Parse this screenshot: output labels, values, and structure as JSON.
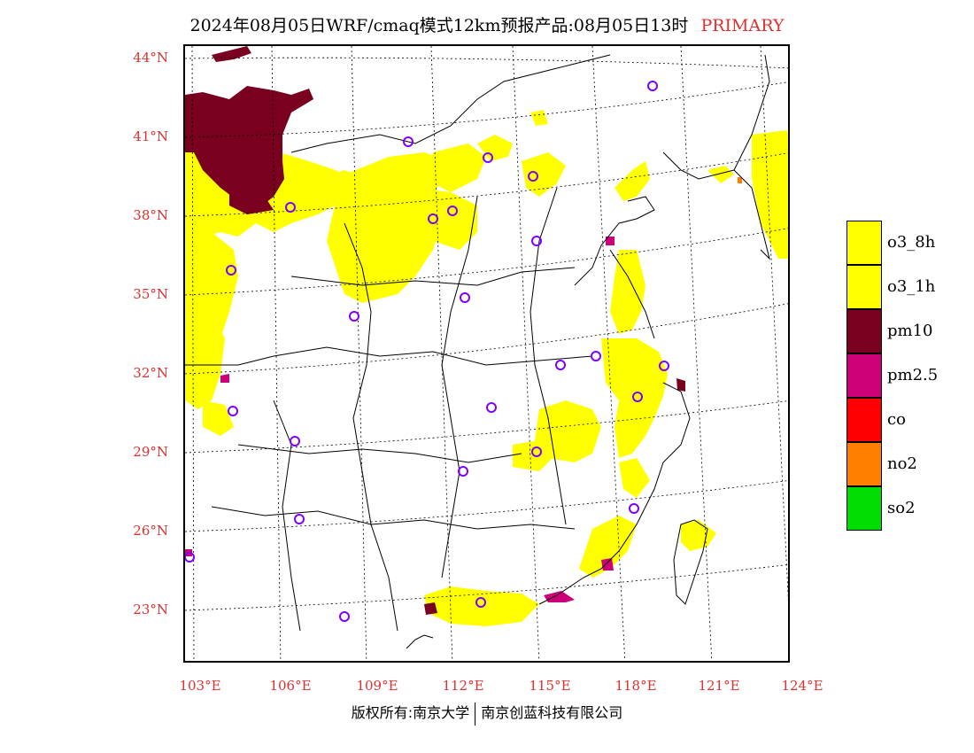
{
  "title": {
    "main": "2024年08月05日WRF/cmaq模式12km预报产品:08月05日13时",
    "tag": "PRIMARY"
  },
  "axes": {
    "lat_labels": [
      "44°N",
      "41°N",
      "38°N",
      "35°N",
      "32°N",
      "29°N",
      "26°N",
      "23°N"
    ],
    "lon_labels": [
      "103°E",
      "106°E",
      "109°E",
      "112°E",
      "115°E",
      "118°E",
      "121°E",
      "124°E"
    ]
  },
  "legend": [
    {
      "label": "o3_8h",
      "color": "#ffff00"
    },
    {
      "label": "o3_1h",
      "color": "#ffff00"
    },
    {
      "label": "pm10",
      "color": "#7a0020"
    },
    {
      "label": "pm2.5",
      "color": "#cc0077"
    },
    {
      "label": "co",
      "color": "#ff0000"
    },
    {
      "label": "no2",
      "color": "#ff8000"
    },
    {
      "label": "so2",
      "color": "#00dd00"
    }
  ],
  "footer": {
    "left": "版权所有:南京大学",
    "right": "南京创蓝科技有限公司"
  },
  "colors": {
    "o3": "#ffff00",
    "pm10": "#7a0020",
    "pm25": "#cc0077",
    "station": "#8000ff",
    "axis_label": "#e03030"
  }
}
